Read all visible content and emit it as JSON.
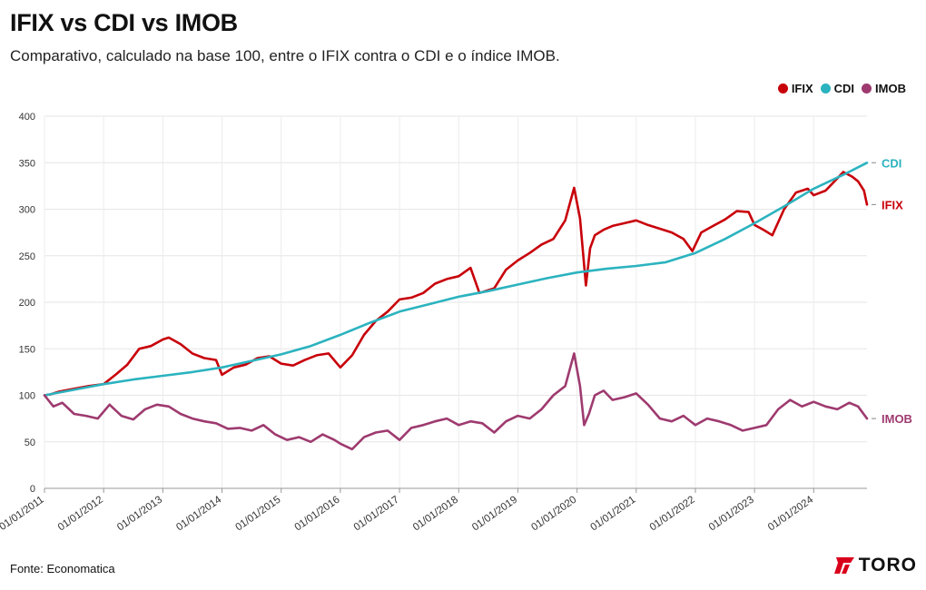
{
  "header": {
    "title": "IFIX vs CDI vs IMOB",
    "subtitle": "Comparativo, calculado na base 100, entre o IFIX contra o CDI e o índice IMOB."
  },
  "legend": [
    {
      "label": "IFIX",
      "color": "#c8000a"
    },
    {
      "label": "CDI",
      "color": "#2bb3bf"
    },
    {
      "label": "IMOB",
      "color": "#9e3a6f"
    }
  ],
  "footer": {
    "source": "Fonte: Economatica",
    "brand": "TORO"
  },
  "chart_data": {
    "type": "line",
    "title": "IFIX vs CDI vs IMOB",
    "xlabel": "",
    "ylabel": "",
    "ylim": [
      0,
      400
    ],
    "yticks": [
      0,
      50,
      100,
      150,
      200,
      250,
      300,
      350,
      400
    ],
    "xlim": [
      2011.0,
      2024.9
    ],
    "xtick_labels": [
      "01/01/2011",
      "01/01/2012",
      "01/01/2013",
      "01/01/2014",
      "01/01/2015",
      "01/01/2016",
      "01/01/2017",
      "01/01/2018",
      "01/01/2019",
      "01/01/2020",
      "01/01/2021",
      "01/01/2022",
      "01/01/2023",
      "01/01/2024"
    ],
    "xtick_values": [
      2011,
      2012,
      2013,
      2014,
      2015,
      2016,
      2017,
      2018,
      2019,
      2020,
      2021,
      2022,
      2023,
      2024
    ],
    "grid": true,
    "legend_position": "top-right",
    "series": [
      {
        "name": "IFIX",
        "color": "#c8000a",
        "end_label": "IFIX",
        "x": [
          2011.0,
          2011.1,
          2011.25,
          2011.5,
          2011.75,
          2012.0,
          2012.2,
          2012.4,
          2012.6,
          2012.8,
          2013.0,
          2013.1,
          2013.3,
          2013.5,
          2013.7,
          2013.9,
          2014.0,
          2014.2,
          2014.4,
          2014.6,
          2014.8,
          2015.0,
          2015.2,
          2015.4,
          2015.6,
          2015.8,
          2016.0,
          2016.2,
          2016.4,
          2016.6,
          2016.8,
          2017.0,
          2017.2,
          2017.4,
          2017.6,
          2017.8,
          2018.0,
          2018.2,
          2018.35,
          2018.45,
          2018.6,
          2018.8,
          2019.0,
          2019.2,
          2019.4,
          2019.6,
          2019.8,
          2019.95,
          2020.05,
          2020.15,
          2020.22,
          2020.3,
          2020.45,
          2020.6,
          2020.8,
          2021.0,
          2021.2,
          2021.4,
          2021.6,
          2021.8,
          2021.95,
          2022.1,
          2022.3,
          2022.5,
          2022.7,
          2022.9,
          2023.0,
          2023.15,
          2023.3,
          2023.5,
          2023.7,
          2023.9,
          2024.0,
          2024.2,
          2024.35,
          2024.5,
          2024.65,
          2024.75,
          2024.85,
          2024.9
        ],
        "y": [
          100,
          101,
          104,
          107,
          110,
          112,
          122,
          133,
          150,
          153,
          160,
          162,
          155,
          145,
          140,
          138,
          122,
          130,
          133,
          140,
          142,
          134,
          132,
          138,
          143,
          145,
          130,
          143,
          165,
          180,
          190,
          203,
          205,
          210,
          220,
          225,
          228,
          237,
          210,
          212,
          215,
          235,
          245,
          253,
          262,
          268,
          288,
          323,
          290,
          218,
          258,
          272,
          278,
          282,
          285,
          288,
          283,
          279,
          275,
          268,
          255,
          275,
          282,
          289,
          298,
          297,
          283,
          278,
          272,
          300,
          318,
          322,
          315,
          320,
          330,
          340,
          335,
          330,
          320,
          305
        ]
      },
      {
        "name": "CDI",
        "color": "#2bb3bf",
        "end_label": "CDI",
        "x": [
          2011.0,
          2011.5,
          2012.0,
          2012.5,
          2013.0,
          2013.5,
          2014.0,
          2014.5,
          2015.0,
          2015.5,
          2016.0,
          2016.5,
          2017.0,
          2017.5,
          2018.0,
          2018.5,
          2019.0,
          2019.5,
          2020.0,
          2020.5,
          2021.0,
          2021.5,
          2022.0,
          2022.5,
          2023.0,
          2023.5,
          2024.0,
          2024.5,
          2024.9
        ],
        "y": [
          100,
          106,
          112,
          117,
          121,
          125,
          130,
          137,
          144,
          153,
          165,
          178,
          190,
          198,
          206,
          212,
          219,
          226,
          232,
          236,
          239,
          243,
          253,
          268,
          285,
          303,
          322,
          337,
          350
        ]
      },
      {
        "name": "IMOB",
        "color": "#9e3a6f",
        "end_label": "IMOB",
        "x": [
          2011.0,
          2011.15,
          2011.3,
          2011.5,
          2011.7,
          2011.9,
          2012.1,
          2012.3,
          2012.5,
          2012.7,
          2012.9,
          2013.1,
          2013.3,
          2013.5,
          2013.7,
          2013.9,
          2014.1,
          2014.3,
          2014.5,
          2014.7,
          2014.9,
          2015.1,
          2015.3,
          2015.5,
          2015.7,
          2015.9,
          2016.0,
          2016.2,
          2016.4,
          2016.6,
          2016.8,
          2017.0,
          2017.2,
          2017.4,
          2017.6,
          2017.8,
          2018.0,
          2018.2,
          2018.4,
          2018.6,
          2018.8,
          2019.0,
          2019.2,
          2019.4,
          2019.6,
          2019.8,
          2019.95,
          2020.05,
          2020.12,
          2020.2,
          2020.3,
          2020.45,
          2020.6,
          2020.8,
          2021.0,
          2021.2,
          2021.4,
          2021.6,
          2021.8,
          2022.0,
          2022.2,
          2022.4,
          2022.6,
          2022.8,
          2023.0,
          2023.2,
          2023.4,
          2023.6,
          2023.8,
          2024.0,
          2024.2,
          2024.4,
          2024.6,
          2024.75,
          2024.9
        ],
        "y": [
          100,
          88,
          92,
          80,
          78,
          75,
          90,
          78,
          74,
          85,
          90,
          88,
          80,
          75,
          72,
          70,
          64,
          65,
          62,
          68,
          58,
          52,
          55,
          50,
          58,
          52,
          48,
          42,
          55,
          60,
          62,
          52,
          65,
          68,
          72,
          75,
          68,
          72,
          70,
          60,
          72,
          78,
          75,
          85,
          100,
          110,
          145,
          110,
          68,
          80,
          100,
          105,
          95,
          98,
          102,
          90,
          75,
          72,
          78,
          68,
          75,
          72,
          68,
          62,
          65,
          68,
          85,
          95,
          88,
          93,
          88,
          85,
          92,
          88,
          75
        ]
      }
    ]
  }
}
